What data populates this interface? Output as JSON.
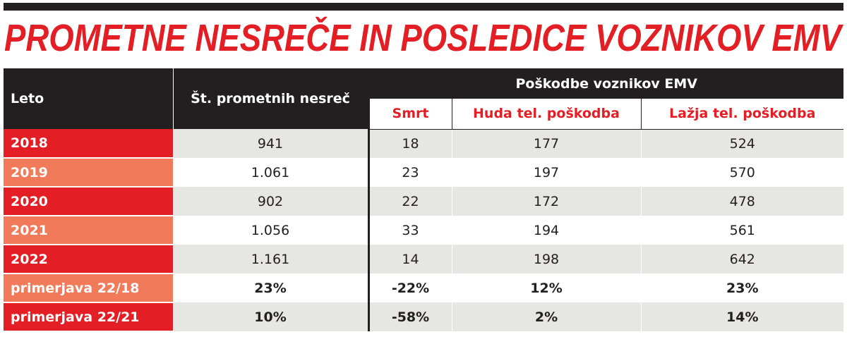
{
  "title": "PROMETNE NESREČE IN POSLEDICE VOZNIKOV EMV",
  "table": {
    "headers": {
      "year": "Leto",
      "accidents": "Št. prometnih nesreč",
      "group": "Poškodbe voznikov EMV",
      "sub": [
        "Smrt",
        "Huda tel. poškodba",
        "Lažja tel. poškodba"
      ]
    },
    "rows": [
      [
        "2018",
        "941",
        "18",
        "177",
        "524"
      ],
      [
        "2019",
        "1.061",
        "23",
        "197",
        "570"
      ],
      [
        "2020",
        "902",
        "22",
        "172",
        "478"
      ],
      [
        "2021",
        "1.056",
        "33",
        "194",
        "561"
      ],
      [
        "2022",
        "1.161",
        "14",
        "198",
        "642"
      ],
      [
        "primerjava 22/18",
        "23%",
        "-22%",
        "12%",
        "23%"
      ],
      [
        "primerjava 22/21",
        "10%",
        "-58%",
        "2%",
        "14%"
      ]
    ]
  }
}
